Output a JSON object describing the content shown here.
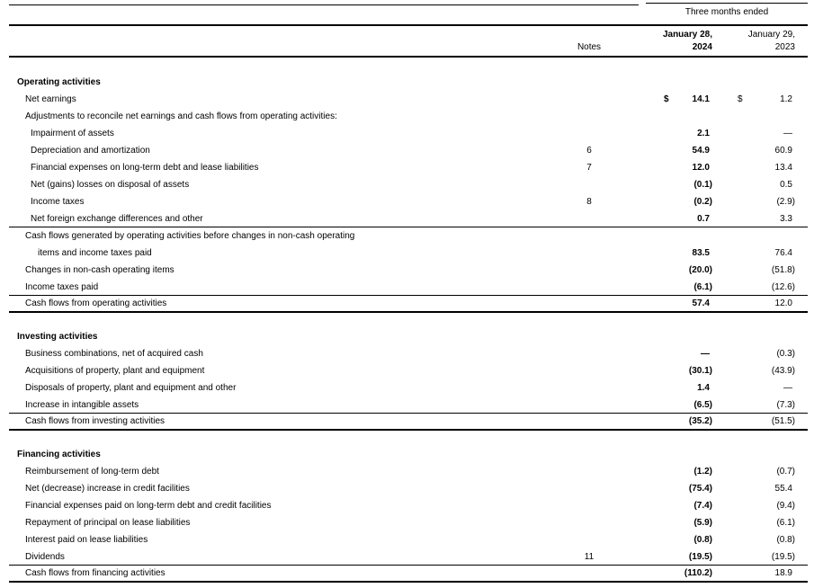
{
  "header": {
    "period_label": "Three months ended",
    "notes_label": "Notes",
    "col_2024": {
      "line1": "January 28,",
      "line2": "2024"
    },
    "col_2023": {
      "line1": "January 29,",
      "line2": "2023"
    }
  },
  "colors": {
    "text": "#000000",
    "background": "#ffffff",
    "rules": "#000000"
  },
  "rows": [
    {
      "label": "Operating activities"
    },
    {
      "label": "Net earnings",
      "d1": "$",
      "v1": "14.1",
      "d2": "$",
      "v2": "1.2"
    },
    {
      "label": "Adjustments to reconcile net earnings and cash flows from operating activities:"
    },
    {
      "label": "Impairment of assets",
      "v1": "2.1",
      "v2": "—"
    },
    {
      "label": "Depreciation and amortization",
      "notes": "6",
      "v1": "54.9",
      "v2": "60.9"
    },
    {
      "label": "Financial expenses on long-term debt and lease liabilities",
      "notes": "7",
      "v1": "12.0",
      "v2": "13.4"
    },
    {
      "label": "Net (gains) losses on disposal of assets",
      "v1": "(0.1)",
      "v2": "0.5"
    },
    {
      "label": "Income taxes",
      "notes": "8",
      "v1": "(0.2)",
      "v2": "(2.9)"
    },
    {
      "label": "Net foreign exchange differences and other",
      "v1": "0.7",
      "v2": "3.3"
    },
    {
      "label": "Cash flows generated by operating activities before changes in non-cash operating"
    },
    {
      "label": "items and income taxes paid",
      "v1": "83.5",
      "v2": "76.4"
    },
    {
      "label": "Changes in non-cash operating items",
      "v1": "(20.0)",
      "v2": "(51.8)"
    },
    {
      "label": "Income taxes paid",
      "v1": "(6.1)",
      "v2": "(12.6)"
    },
    {
      "label": "Cash flows from operating activities",
      "v1": "57.4",
      "v2": "12.0"
    },
    {
      "label": "Investing activities"
    },
    {
      "label": "Business combinations, net of acquired cash",
      "v1": "—",
      "v2": "(0.3)"
    },
    {
      "label": "Acquisitions of property, plant and equipment",
      "v1": "(30.1)",
      "v2": "(43.9)"
    },
    {
      "label": "Disposals of property, plant and equipment and other",
      "v1": "1.4",
      "v2": "—"
    },
    {
      "label": "Increase in intangible assets",
      "v1": "(6.5)",
      "v2": "(7.3)"
    },
    {
      "label": "Cash flows from investing activities",
      "v1": "(35.2)",
      "v2": "(51.5)"
    },
    {
      "label": "Financing activities"
    },
    {
      "label": "Reimbursement of long-term debt",
      "v1": "(1.2)",
      "v2": "(0.7)"
    },
    {
      "label": "Net (decrease) increase in credit facilities",
      "v1": "(75.4)",
      "v2": "55.4"
    },
    {
      "label": "Financial expenses paid on long-term debt and credit facilities",
      "v1": "(7.4)",
      "v2": "(9.4)"
    },
    {
      "label": "Repayment of principal on lease liabilities",
      "v1": "(5.9)",
      "v2": "(6.1)"
    },
    {
      "label": "Interest paid on lease liabilities",
      "v1": "(0.8)",
      "v2": "(0.8)"
    },
    {
      "label": "Dividends",
      "notes": "11",
      "v1": "(19.5)",
      "v2": "(19.5)"
    },
    {
      "label": "Cash flows from financing activities",
      "v1": "(110.2)",
      "v2": "18.9"
    }
  ]
}
